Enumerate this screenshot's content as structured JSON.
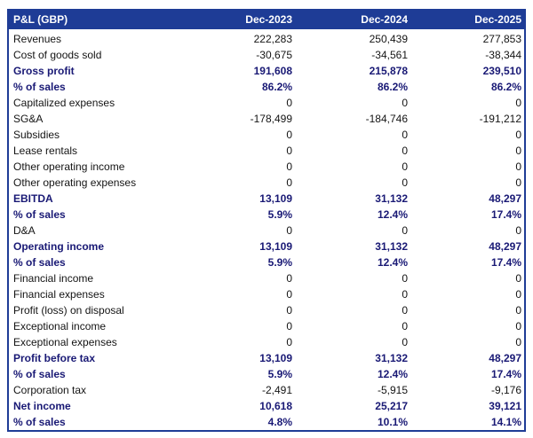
{
  "colors": {
    "header_bg": "#1e3c96",
    "header_text": "#ffffff",
    "bold_row_text": "#191975",
    "body_text": "#141414",
    "table_border": "#1e3c96"
  },
  "chart_data": {
    "type": "table",
    "title": "P&L (GBP)",
    "columns": [
      "Dec-2023",
      "Dec-2024",
      "Dec-2025"
    ],
    "rows": [
      {
        "label": "Revenues",
        "values": [
          "222,283",
          "250,439",
          "277,853"
        ],
        "bold": false
      },
      {
        "label": "Cost of goods sold",
        "values": [
          "-30,675",
          "-34,561",
          "-38,344"
        ],
        "bold": false
      },
      {
        "label": "Gross profit",
        "values": [
          "191,608",
          "215,878",
          "239,510"
        ],
        "bold": true
      },
      {
        "label": "% of sales",
        "values": [
          "86.2%",
          "86.2%",
          "86.2%"
        ],
        "bold": true
      },
      {
        "label": "Capitalized expenses",
        "values": [
          "0",
          "0",
          "0"
        ],
        "bold": false
      },
      {
        "label": "SG&A",
        "values": [
          "-178,499",
          "-184,746",
          "-191,212"
        ],
        "bold": false
      },
      {
        "label": "Subsidies",
        "values": [
          "0",
          "0",
          "0"
        ],
        "bold": false
      },
      {
        "label": "Lease rentals",
        "values": [
          "0",
          "0",
          "0"
        ],
        "bold": false
      },
      {
        "label": "Other operating income",
        "values": [
          "0",
          "0",
          "0"
        ],
        "bold": false
      },
      {
        "label": "Other operating expenses",
        "values": [
          "0",
          "0",
          "0"
        ],
        "bold": false
      },
      {
        "label": "EBITDA",
        "values": [
          "13,109",
          "31,132",
          "48,297"
        ],
        "bold": true
      },
      {
        "label": "% of sales",
        "values": [
          "5.9%",
          "12.4%",
          "17.4%"
        ],
        "bold": true
      },
      {
        "label": "D&A",
        "values": [
          "0",
          "0",
          "0"
        ],
        "bold": false
      },
      {
        "label": "Operating income",
        "values": [
          "13,109",
          "31,132",
          "48,297"
        ],
        "bold": true
      },
      {
        "label": "% of sales",
        "values": [
          "5.9%",
          "12.4%",
          "17.4%"
        ],
        "bold": true
      },
      {
        "label": "Financial income",
        "values": [
          "0",
          "0",
          "0"
        ],
        "bold": false
      },
      {
        "label": "Financial expenses",
        "values": [
          "0",
          "0",
          "0"
        ],
        "bold": false
      },
      {
        "label": "Profit (loss) on disposal",
        "values": [
          "0",
          "0",
          "0"
        ],
        "bold": false
      },
      {
        "label": "Exceptional income",
        "values": [
          "0",
          "0",
          "0"
        ],
        "bold": false
      },
      {
        "label": "Exceptional expenses",
        "values": [
          "0",
          "0",
          "0"
        ],
        "bold": false
      },
      {
        "label": "Profit before tax",
        "values": [
          "13,109",
          "31,132",
          "48,297"
        ],
        "bold": true
      },
      {
        "label": "% of sales",
        "values": [
          "5.9%",
          "12.4%",
          "17.4%"
        ],
        "bold": true
      },
      {
        "label": "Corporation tax",
        "values": [
          "-2,491",
          "-5,915",
          "-9,176"
        ],
        "bold": false
      },
      {
        "label": "Net income",
        "values": [
          "10,618",
          "25,217",
          "39,121"
        ],
        "bold": true
      },
      {
        "label": "% of sales",
        "values": [
          "4.8%",
          "10.1%",
          "14.1%"
        ],
        "bold": true
      }
    ]
  }
}
